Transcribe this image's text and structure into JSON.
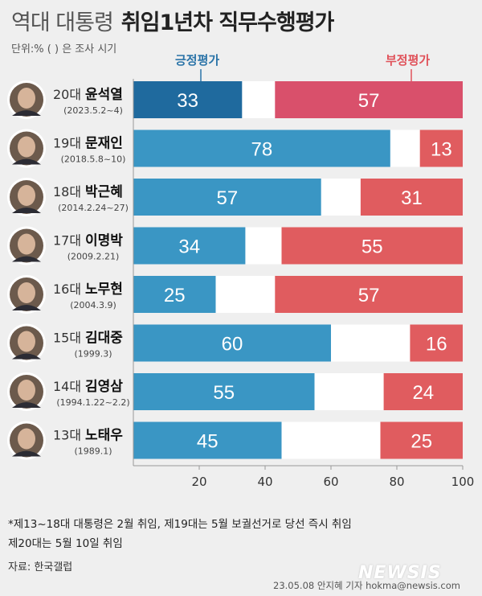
{
  "title": {
    "light": "역대 대통령",
    "bold": "취임1년차 직무수행평가"
  },
  "unit_note": "단위:% ( ) 은 조사 시기",
  "legend": {
    "positive": "긍정평가",
    "negative": "부정평가"
  },
  "colors": {
    "positive": "#3a96c4",
    "positive_highlight": "#1f6a9e",
    "negative": "#e05c5f",
    "negative_highlight": "#d9506b",
    "neutral": "#ffffff"
  },
  "chart_data": {
    "type": "bar",
    "stacked": true,
    "orientation": "horizontal",
    "title": "역대 대통령 취임1년차 직무수행평가",
    "xlim": [
      0,
      100
    ],
    "xticks": [
      "20",
      "40",
      "60",
      "80",
      "100"
    ],
    "series": [
      {
        "name": "긍정평가",
        "values": [
          33,
          78,
          57,
          34,
          25,
          60,
          55,
          45
        ]
      },
      {
        "name": "부정평가",
        "values": [
          57,
          13,
          31,
          55,
          57,
          16,
          24,
          25
        ]
      }
    ],
    "categories": [
      {
        "term": "20대",
        "name": "윤석열",
        "date": "(2023.5.2~4)"
      },
      {
        "term": "19대",
        "name": "문재인",
        "date": "(2018.5.8~10)"
      },
      {
        "term": "18대",
        "name": "박근혜",
        "date": "(2014.2.24~27)"
      },
      {
        "term": "17대",
        "name": "이명박",
        "date": "(2009.2.21)"
      },
      {
        "term": "16대",
        "name": "노무현",
        "date": "(2004.3.9)"
      },
      {
        "term": "15대",
        "name": "김대중",
        "date": "(1999.3)"
      },
      {
        "term": "14대",
        "name": "김영삼",
        "date": "(1994.1.22~2.2)"
      },
      {
        "term": "13대",
        "name": "노태우",
        "date": "(1989.1)"
      }
    ]
  },
  "footnotes": [
    "*제13~18대 대통령은 2월 취임, 제19대는 5월 보궐선거로 당선 즉시 취임",
    "제20대는 5월 10일 취임"
  ],
  "source": "자료: 한국갤럽",
  "credit": "23.05.08 안지혜 기자 hokma@newsis.com",
  "logo": "NEWSIS"
}
